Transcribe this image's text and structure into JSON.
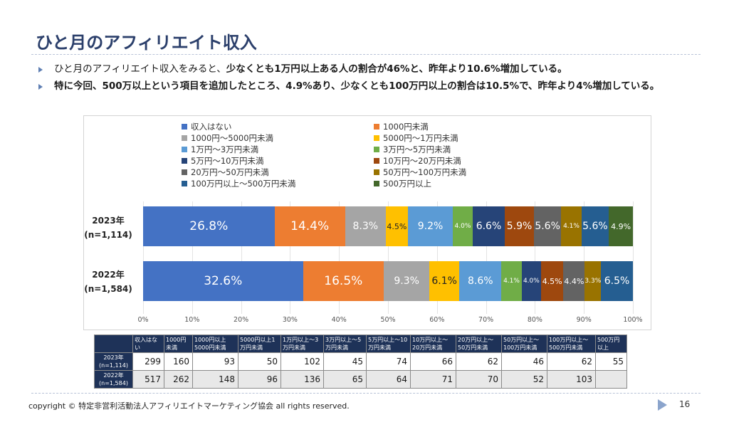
{
  "header": {
    "title": "ひと月のアフィリエイト収入"
  },
  "bullets": [
    {
      "pre": "ひと月のアフィリエイト収入をみると、",
      "bold": "少なくとも1万円以上ある人の割合が46%と、昨年より10.6%増加している。"
    },
    {
      "pre": "",
      "bold": "特に今回、500万以上という項目を追加したところ、4.9%あり、少なくとも100万円以上の割合は10.5%で、昨年より4%増加している。"
    }
  ],
  "chart_data": {
    "type": "bar",
    "orientation": "horizontal-stacked-100",
    "categories": [
      "収入はない",
      "1000円未満",
      "1000円～5000円未満",
      "5000円～1万円未満",
      "1万円～3万円未満",
      "3万円～5万円未満",
      "5万円～10万円未満",
      "10万円～20万円未満",
      "20万円～50万円未満",
      "50万円～100万円未満",
      "100万円以上～500万円未満",
      "500万円以上"
    ],
    "colors": [
      "#4472c4",
      "#ed7d31",
      "#a5a5a5",
      "#ffc000",
      "#5b9bd5",
      "#70ad47",
      "#264478",
      "#9e480e",
      "#636363",
      "#997300",
      "#255e91",
      "#43682b"
    ],
    "rows": [
      {
        "label": "2023年",
        "n": "(n=1,114)",
        "values": [
          26.8,
          14.4,
          8.3,
          4.5,
          9.2,
          4.0,
          6.6,
          5.9,
          5.6,
          4.1,
          5.6,
          4.9
        ],
        "labels": [
          "26.8%",
          "14.4%",
          "8.3%",
          "4.5%",
          "9.2%",
          "4.0%",
          "6.6%",
          "5.9%",
          "5.6%",
          "4.1%",
          "5.6%",
          "4.9%"
        ]
      },
      {
        "label": "2022年",
        "n": "(n=1,584)",
        "values": [
          32.6,
          16.5,
          9.3,
          6.1,
          8.6,
          4.1,
          4.0,
          4.5,
          4.4,
          3.3,
          6.5
        ],
        "labels": [
          "32.6%",
          "16.5%",
          "9.3%",
          "6.1%",
          "8.6%",
          "4.1%",
          "4.0%",
          "4.5%",
          "4.4%",
          "3.3%",
          "6.5%"
        ]
      }
    ],
    "xlim": [
      0,
      100
    ],
    "xticks": [
      "0%",
      "10%",
      "20%",
      "30%",
      "40%",
      "50%",
      "60%",
      "70%",
      "80%",
      "90%",
      "100%"
    ],
    "legend_position": "top",
    "grid": true
  },
  "table": {
    "headers": [
      "収入はない",
      "1000円未満",
      "1000円以上5000円未満",
      "5000円以上1万円未満",
      "1万円以上～3万円未満",
      "3万円以上～5万円未満",
      "5万円以上～10万円未満",
      "10万円以上～20万円未満",
      "20万円以上～50万円未満",
      "50万円以上～100万円未満",
      "100万円以上～500万円未満",
      "500万円以上"
    ],
    "rows": [
      {
        "label": "2023年(n=1,114)",
        "values": [
          "299",
          "160",
          "93",
          "50",
          "102",
          "45",
          "74",
          "66",
          "62",
          "46",
          "62",
          "55"
        ]
      },
      {
        "label": "2022年(n=1,584)",
        "values": [
          "517",
          "262",
          "148",
          "96",
          "136",
          "65",
          "64",
          "71",
          "70",
          "52",
          "103",
          ""
        ]
      }
    ]
  },
  "footer": {
    "copyright": "copyright © 特定非営利活動法人アフィリエイトマーケティング協会 all rights reserved.",
    "page": "16"
  }
}
